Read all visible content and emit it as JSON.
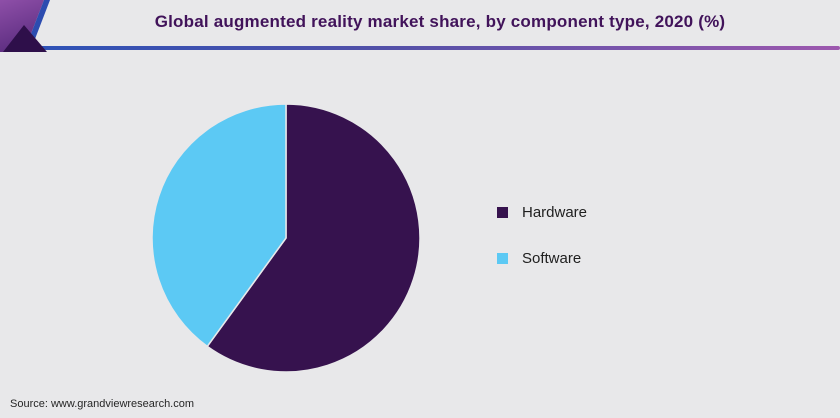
{
  "header": {
    "title": "Global augmented reality market share, by component type, 2020 (%)"
  },
  "footer": {
    "source": "Source: www.grandviewresearch.com"
  },
  "colors": {
    "page_background": "#e8e8ea",
    "title_text": "#41135a",
    "hardware": "#36124e",
    "software": "#5cc9f4",
    "legend_text": "#1f1f1f",
    "line_gradient_left": "#2a52b8",
    "line_gradient_mid": "#5150a8",
    "line_gradient_right": "#9d58ae",
    "corner_gradient_top": "#8e4fa8",
    "corner_gradient_bottom": "#5c2d80",
    "corner_triangle": "#2e0f4a",
    "corner_stripe": "#2c4cb0"
  },
  "chart_data": {
    "type": "pie",
    "title": "Global augmented reality market share, by component type, 2020 (%)",
    "unit": "%",
    "start_angle_deg": 0,
    "direction": "clockwise",
    "legend_position": "right",
    "slices": [
      {
        "label": "Hardware",
        "value": 60,
        "color": "#36124e"
      },
      {
        "label": "Software",
        "value": 40,
        "color": "#5cc9f4"
      }
    ]
  }
}
